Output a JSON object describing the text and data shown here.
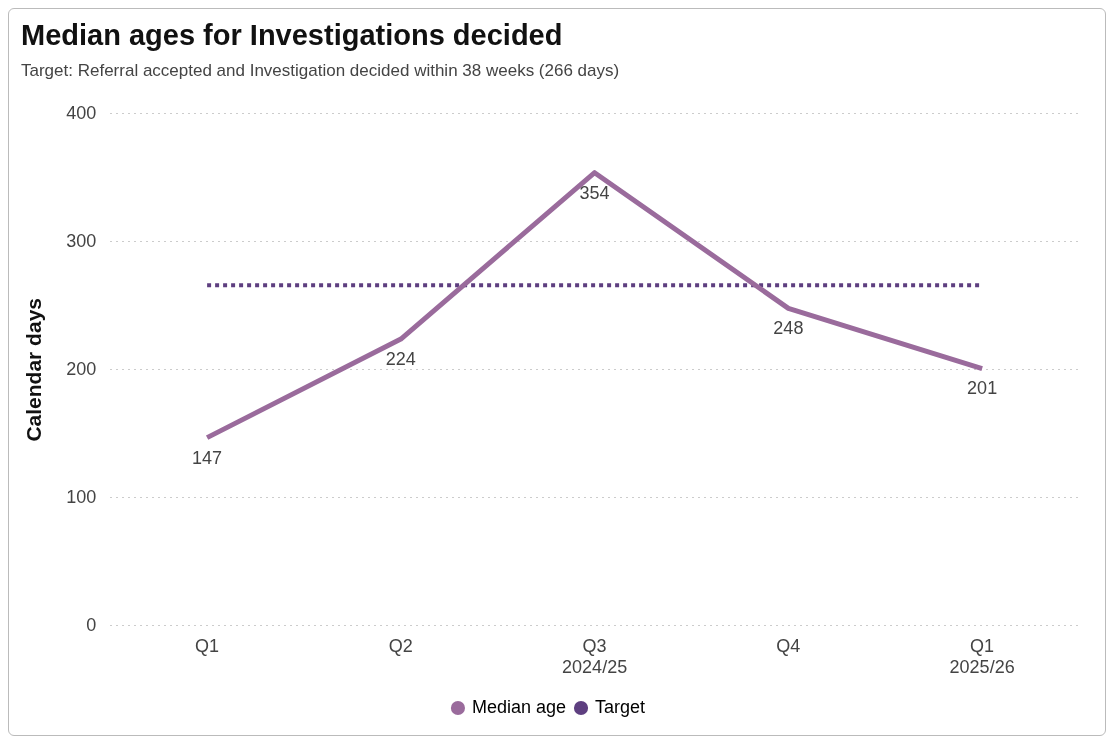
{
  "chart_data": {
    "type": "line",
    "title": "Median ages for Investigations decided",
    "subtitle": "Target: Referral accepted and Investigation decided within 38 weeks (266 days)",
    "ylabel": "Calendar days",
    "categories": [
      "Q1",
      "Q2",
      "Q3\n2024/25",
      "Q4",
      "Q1\n2025/26"
    ],
    "series": [
      {
        "name": "Median age",
        "color": "#9a6b9c",
        "values": [
          147,
          224,
          354,
          248,
          201
        ],
        "value_labels": [
          "147",
          "224",
          "354",
          "248",
          "201"
        ],
        "line_style": "solid"
      },
      {
        "name": "Target",
        "color": "#5e3f80",
        "values": [
          266,
          266,
          266,
          266,
          266
        ],
        "line_style": "dotted"
      }
    ],
    "ylim": [
      0,
      400
    ],
    "yticks": [
      0,
      100,
      200,
      300,
      400
    ],
    "grid": "y",
    "legend": "bottom",
    "marker": "none"
  }
}
